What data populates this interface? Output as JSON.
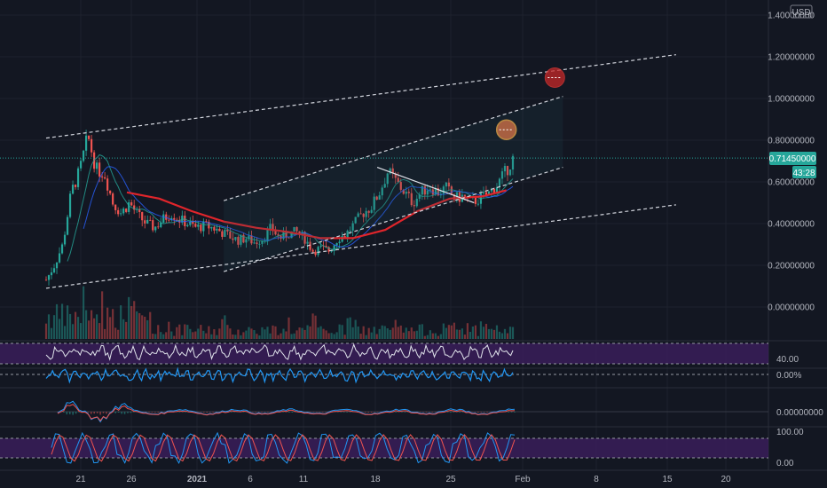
{
  "currency": "USD",
  "price_badge": "0.71450000",
  "countdown_badge": "43:28",
  "colors": {
    "background": "#131722",
    "up": "#26a69a",
    "down": "#ef5350",
    "ma_red": "#e0252b",
    "ma_blue": "#2962ff",
    "ma_teal": "#26a69a",
    "channel_line": "#d1d4dc",
    "badge": "#26a69a",
    "rsi_band": "#3c1e5e",
    "osc_blue": "#2196f3",
    "target_red": "#c62828",
    "target_orange": "#e57a4b"
  },
  "chart_data": {
    "type": "candlestick",
    "y_ticks": [
      "1.40000000",
      "1.20000000",
      "1.00000000",
      "0.80000000",
      "0.60000000",
      "0.40000000",
      "0.20000000",
      "0.00000000"
    ],
    "y_values": [
      1.4,
      1.2,
      1.0,
      0.8,
      0.6,
      0.4,
      0.2,
      0.0
    ],
    "x_ticks": [
      "21",
      "26",
      "2021",
      "6",
      "11",
      "18",
      "25",
      "Feb",
      "8",
      "15",
      "20"
    ],
    "x_tick_bold": [
      false,
      false,
      true,
      false,
      false,
      false,
      false,
      false,
      false,
      false,
      false
    ],
    "last_price": 0.7145,
    "grid": true,
    "price_path": [
      [
        0,
        0.13
      ],
      [
        1,
        0.2
      ],
      [
        2,
        0.3
      ],
      [
        3,
        0.55
      ],
      [
        4,
        0.65
      ],
      [
        5,
        0.82
      ],
      [
        6,
        0.66
      ],
      [
        7,
        0.64
      ],
      [
        8,
        0.5
      ],
      [
        9,
        0.45
      ],
      [
        10,
        0.5
      ],
      [
        11,
        0.44
      ],
      [
        12,
        0.4
      ],
      [
        13,
        0.38
      ],
      [
        14,
        0.42
      ],
      [
        15,
        0.45
      ],
      [
        16,
        0.42
      ],
      [
        17,
        0.4
      ],
      [
        18,
        0.38
      ],
      [
        19,
        0.39
      ],
      [
        20,
        0.38
      ],
      [
        21,
        0.36
      ],
      [
        22,
        0.34
      ],
      [
        23,
        0.32
      ],
      [
        24,
        0.33
      ],
      [
        25,
        0.31
      ],
      [
        26,
        0.33
      ],
      [
        27,
        0.38
      ],
      [
        28,
        0.33
      ],
      [
        29,
        0.35
      ],
      [
        30,
        0.36
      ],
      [
        31,
        0.33
      ],
      [
        32,
        0.27
      ],
      [
        33,
        0.28
      ],
      [
        34,
        0.27
      ],
      [
        35,
        0.33
      ],
      [
        36,
        0.35
      ],
      [
        37,
        0.4
      ],
      [
        38,
        0.45
      ],
      [
        39,
        0.48
      ],
      [
        40,
        0.55
      ],
      [
        41,
        0.65
      ],
      [
        42,
        0.6
      ],
      [
        43,
        0.55
      ],
      [
        44,
        0.5
      ],
      [
        45,
        0.55
      ],
      [
        46,
        0.58
      ],
      [
        47,
        0.55
      ],
      [
        48,
        0.57
      ],
      [
        49,
        0.52
      ],
      [
        50,
        0.53
      ],
      [
        51,
        0.5
      ],
      [
        52,
        0.52
      ],
      [
        53,
        0.54
      ],
      [
        54,
        0.58
      ],
      [
        55,
        0.64
      ],
      [
        56,
        0.71
      ]
    ],
    "ma_red": [
      [
        10,
        0.55
      ],
      [
        14,
        0.52
      ],
      [
        18,
        0.46
      ],
      [
        22,
        0.41
      ],
      [
        26,
        0.38
      ],
      [
        30,
        0.36
      ],
      [
        34,
        0.33
      ],
      [
        38,
        0.33
      ],
      [
        42,
        0.37
      ],
      [
        46,
        0.46
      ],
      [
        50,
        0.52
      ],
      [
        54,
        0.53
      ],
      [
        57,
        0.56
      ]
    ],
    "channel_lines": [
      {
        "from": [
          0,
          0.81
        ],
        "to": [
          78,
          1.21
        ]
      },
      {
        "from": [
          0,
          0.09
        ],
        "to": [
          78,
          0.49
        ]
      },
      {
        "from": [
          22,
          0.51
        ],
        "to": [
          64,
          1.01
        ]
      },
      {
        "from": [
          22,
          0.17
        ],
        "to": [
          64,
          0.67
        ]
      },
      {
        "from": [
          41,
          0.67
        ],
        "to": [
          53,
          0.5
        ],
        "style": "solid"
      }
    ],
    "target_circles": [
      {
        "x": 57,
        "y": 0.85,
        "kind": "orange"
      },
      {
        "x": 63,
        "y": 1.1,
        "kind": "red"
      }
    ],
    "indicators": [
      {
        "name": "osc1",
        "level_label": "40.00"
      },
      {
        "name": "osc2",
        "level_label": "0.00%"
      },
      {
        "name": "macd",
        "level_label": "0.00000000"
      },
      {
        "name": "stoch",
        "top_label": "100.00",
        "bottom_label": "0.00"
      }
    ]
  }
}
